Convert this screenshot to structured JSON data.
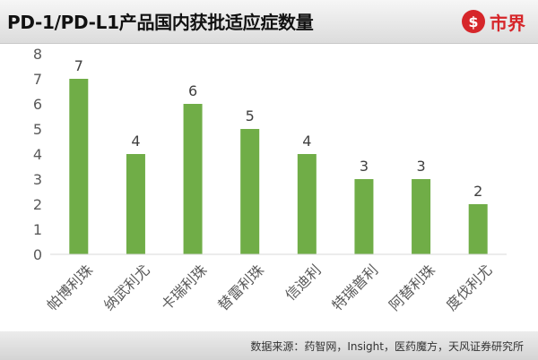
{
  "header": {
    "title": "PD-1/PD-L1产品国内获批适应症数量",
    "logo_symbol": "$",
    "logo_text": "市界"
  },
  "footer": {
    "source": "数据来源：药智网，Insight，医药魔方，天风证券研究所"
  },
  "colors": {
    "bar": "#70ad47",
    "logo": "#d6262a"
  },
  "chart_data": {
    "type": "bar",
    "title": "PD-1/PD-L1产品国内获批适应症数量",
    "categories": [
      "帕博利珠",
      "纳武利尤",
      "卡瑞利珠",
      "替雷利珠",
      "信迪利",
      "特瑞普利",
      "阿替利珠",
      "度伐利尤"
    ],
    "values": [
      7,
      4,
      6,
      5,
      4,
      3,
      3,
      2
    ],
    "ylim": [
      0,
      8
    ],
    "yticks": [
      0,
      1,
      2,
      3,
      4,
      5,
      6,
      7,
      8
    ],
    "xlabel": "",
    "ylabel": "",
    "grid": false,
    "data_labels": true
  }
}
